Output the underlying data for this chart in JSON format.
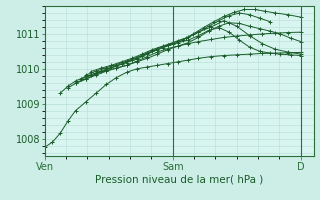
{
  "bg_color": "#cceee6",
  "plot_bg_color": "#d8f5f0",
  "grid_color": "#b8ddd6",
  "line_color": "#1a5c2a",
  "xlabel": "Pression niveau de la mer( hPa )",
  "xlabel_color": "#1a5c2a",
  "tick_label_color": "#1a5c2a",
  "axis_color": "#2a6e3a",
  "ylim": [
    1007.5,
    1011.8
  ],
  "yticks": [
    1008,
    1009,
    1010,
    1011
  ],
  "xlim": [
    0.0,
    1.05
  ],
  "xtick_pos": [
    0.0,
    0.5,
    1.0
  ],
  "xtick_labels": [
    "Ven",
    "Sam",
    "D"
  ],
  "series": [
    {
      "x": [
        0.0,
        0.03,
        0.06,
        0.09,
        0.12,
        0.16,
        0.2,
        0.24,
        0.28,
        0.32,
        0.36,
        0.4,
        0.44,
        0.48,
        0.52,
        0.56,
        0.6,
        0.65,
        0.7,
        0.75,
        0.8,
        0.85,
        0.9,
        0.95,
        1.0
      ],
      "y": [
        1007.75,
        1007.9,
        1008.15,
        1008.5,
        1008.8,
        1009.05,
        1009.3,
        1009.55,
        1009.75,
        1009.9,
        1010.0,
        1010.05,
        1010.1,
        1010.15,
        1010.2,
        1010.25,
        1010.3,
        1010.35,
        1010.38,
        1010.4,
        1010.42,
        1010.44,
        1010.45,
        1010.46,
        1010.47
      ]
    },
    {
      "x": [
        0.06,
        0.09,
        0.12,
        0.16,
        0.2,
        0.24,
        0.28,
        0.32,
        0.36,
        0.4,
        0.44,
        0.48,
        0.52,
        0.56,
        0.6,
        0.65,
        0.7,
        0.75,
        0.8,
        0.85,
        0.9,
        0.95,
        1.0
      ],
      "y": [
        1009.3,
        1009.5,
        1009.65,
        1009.78,
        1009.88,
        1009.95,
        1010.02,
        1010.1,
        1010.2,
        1010.3,
        1010.42,
        1010.55,
        1010.65,
        1010.72,
        1010.78,
        1010.84,
        1010.9,
        1010.94,
        1010.97,
        1011.0,
        1011.02,
        1011.04,
        1011.05
      ]
    },
    {
      "x": [
        0.09,
        0.12,
        0.16,
        0.2,
        0.24,
        0.28,
        0.32,
        0.36,
        0.4,
        0.44,
        0.48,
        0.52,
        0.56,
        0.6,
        0.64,
        0.68,
        0.72,
        0.76,
        0.8,
        0.84,
        0.88,
        0.92,
        0.96,
        1.0
      ],
      "y": [
        1009.45,
        1009.58,
        1009.7,
        1009.82,
        1009.93,
        1010.02,
        1010.1,
        1010.22,
        1010.35,
        1010.48,
        1010.58,
        1010.65,
        1010.75,
        1010.9,
        1011.08,
        1011.22,
        1011.32,
        1011.3,
        1011.22,
        1011.15,
        1011.08,
        1011.0,
        1010.88,
        1010.78
      ]
    },
    {
      "x": [
        0.12,
        0.16,
        0.2,
        0.24,
        0.28,
        0.32,
        0.36,
        0.4,
        0.44,
        0.48,
        0.52,
        0.56,
        0.6,
        0.64,
        0.68,
        0.72,
        0.76,
        0.8,
        0.84,
        0.88
      ],
      "y": [
        1009.6,
        1009.72,
        1009.85,
        1009.97,
        1010.08,
        1010.18,
        1010.28,
        1010.42,
        1010.55,
        1010.68,
        1010.8,
        1010.9,
        1011.05,
        1011.22,
        1011.38,
        1011.52,
        1011.6,
        1011.55,
        1011.45,
        1011.35
      ]
    },
    {
      "x": [
        0.14,
        0.18,
        0.22,
        0.26,
        0.3,
        0.34,
        0.38,
        0.42,
        0.46,
        0.5,
        0.54,
        0.58,
        0.62,
        0.66,
        0.7,
        0.74,
        0.78,
        0.82,
        0.86,
        0.9,
        0.95,
        1.0
      ],
      "y": [
        1009.7,
        1009.82,
        1009.94,
        1010.04,
        1010.14,
        1010.26,
        1010.38,
        1010.5,
        1010.6,
        1010.7,
        1010.82,
        1011.0,
        1011.18,
        1011.35,
        1011.5,
        1011.62,
        1011.7,
        1011.7,
        1011.65,
        1011.6,
        1011.55,
        1011.48
      ]
    },
    {
      "x": [
        0.16,
        0.2,
        0.24,
        0.28,
        0.32,
        0.36,
        0.4,
        0.44,
        0.48,
        0.52,
        0.56,
        0.6,
        0.64,
        0.68,
        0.72,
        0.76,
        0.8,
        0.84,
        0.88,
        0.92,
        0.96,
        1.0
      ],
      "y": [
        1009.82,
        1009.93,
        1010.03,
        1010.12,
        1010.22,
        1010.32,
        1010.45,
        1010.58,
        1010.68,
        1010.75,
        1010.82,
        1010.95,
        1011.1,
        1011.18,
        1011.05,
        1010.82,
        1010.62,
        1010.5,
        1010.45,
        1010.42,
        1010.4,
        1010.38
      ]
    },
    {
      "x": [
        0.18,
        0.22,
        0.26,
        0.3,
        0.34,
        0.38,
        0.42,
        0.46,
        0.5,
        0.55,
        0.6,
        0.65,
        0.7,
        0.75,
        0.8,
        0.85,
        0.9,
        0.95,
        1.0
      ],
      "y": [
        1009.92,
        1010.02,
        1010.1,
        1010.2,
        1010.3,
        1010.42,
        1010.55,
        1010.65,
        1010.75,
        1010.88,
        1011.05,
        1011.2,
        1011.38,
        1011.22,
        1010.95,
        1010.72,
        1010.56,
        1010.48,
        1010.42
      ]
    }
  ]
}
